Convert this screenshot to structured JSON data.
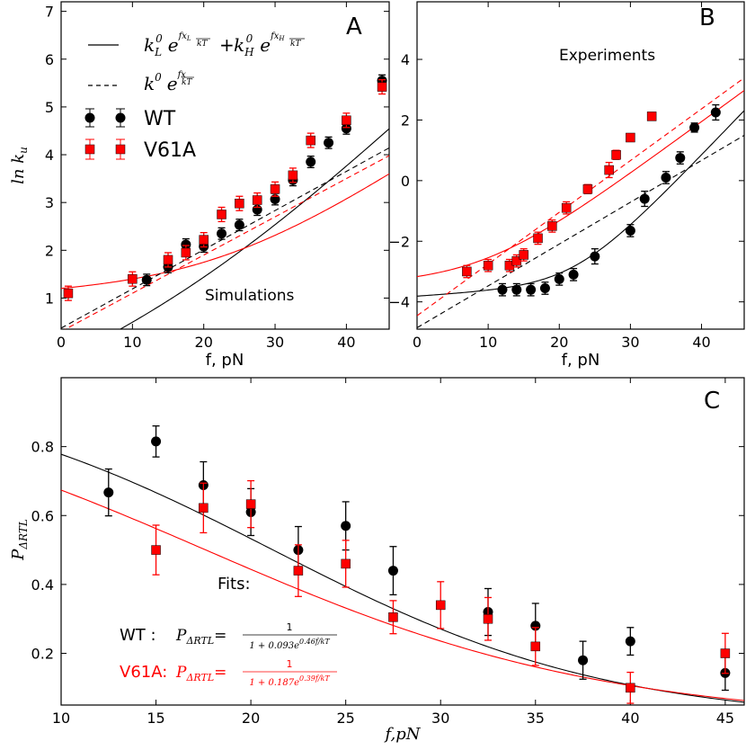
{
  "chart_data": [
    {
      "panel": "A",
      "type": "scatter",
      "panel_label": "A",
      "annotation": "Simulations",
      "xlabel": "f, pN",
      "ylabel": "ln k",
      "ylabel_sub": "u",
      "xlim": [
        0,
        46
      ],
      "ylim": [
        0.35,
        7.2
      ],
      "xticks": [
        "0",
        "10",
        "20",
        "30",
        "40"
      ],
      "yticks": [
        "1",
        "2",
        "3",
        "4",
        "5",
        "6",
        "7"
      ],
      "legend": {
        "solid_label": "k_L^0 e^{f x_L / kT} + k_H^0 e^{f x_H / kT}",
        "dashed_label": "k^0 e^{f x / kT}",
        "wt_label": "WT",
        "mut_label": "V61A"
      },
      "series": [
        {
          "name": "WT",
          "color": "#000000",
          "marker": "circle",
          "x": [
            12,
            15,
            17.5,
            20,
            22.5,
            25,
            27.5,
            30,
            32.5,
            35,
            37.5,
            40,
            45
          ],
          "y": [
            1.38,
            1.65,
            2.12,
            2.08,
            2.35,
            2.53,
            2.85,
            3.07,
            3.47,
            3.85,
            4.25,
            4.55,
            5.55
          ],
          "err": [
            0.12,
            0.12,
            0.12,
            0.12,
            0.12,
            0.12,
            0.12,
            0.12,
            0.12,
            0.12,
            0.12,
            0.12,
            0.12
          ]
        },
        {
          "name": "V61A",
          "color": "#ff0000",
          "marker": "square",
          "x": [
            1,
            10,
            15,
            17.5,
            20,
            22.5,
            25,
            27.5,
            30,
            32.5,
            35,
            40,
            45
          ],
          "y": [
            1.1,
            1.4,
            1.8,
            1.95,
            2.22,
            2.75,
            2.98,
            3.05,
            3.28,
            3.57,
            4.3,
            4.72,
            5.42
          ],
          "err": [
            0.15,
            0.15,
            0.15,
            0.15,
            0.15,
            0.15,
            0.15,
            0.15,
            0.15,
            0.15,
            0.15,
            0.15,
            0.15
          ]
        }
      ],
      "fits": [
        {
          "name": "WT two-exp",
          "color": "#000000",
          "style": "solid",
          "kL": 0.6,
          "xL": 0.06,
          "kH": 0.135,
          "xH": 0.14
        },
        {
          "name": "V61A two-exp",
          "color": "#ff0000",
          "style": "solid",
          "kL": 3.0,
          "xL": 0.005,
          "kH": 0.33,
          "xH": 0.1
        },
        {
          "name": "WT single",
          "color": "#000000",
          "style": "dashed",
          "k0": 1.45,
          "x": 0.082
        },
        {
          "name": "V61A single",
          "color": "#ff0000",
          "style": "dashed",
          "k0": 1.35,
          "x": 0.08
        }
      ]
    },
    {
      "panel": "B",
      "type": "scatter",
      "panel_label": "B",
      "annotation": "Experiments",
      "xlabel": "f, pN",
      "xlim": [
        0,
        46
      ],
      "ylim": [
        -4.9,
        5.9
      ],
      "xticks": [
        "0",
        "10",
        "20",
        "30",
        "40"
      ],
      "yticks": [
        "−4",
        "−2",
        "0",
        "2",
        "4"
      ],
      "series": [
        {
          "name": "WT",
          "color": "#000000",
          "marker": "circle",
          "x": [
            12,
            14,
            16,
            18,
            20,
            22,
            25,
            30,
            32,
            35,
            37,
            39,
            42
          ],
          "y": [
            -3.6,
            -3.6,
            -3.6,
            -3.55,
            -3.25,
            -3.1,
            -2.5,
            -1.65,
            -0.6,
            0.1,
            0.75,
            1.75,
            2.25
          ],
          "err": [
            0.2,
            0.2,
            0.2,
            0.2,
            0.2,
            0.2,
            0.25,
            0.2,
            0.25,
            0.2,
            0.2,
            0.15,
            0.25
          ]
        },
        {
          "name": "V61A",
          "color": "#ff0000",
          "marker": "square",
          "x": [
            7,
            10,
            13,
            14,
            15,
            17,
            19,
            21,
            24,
            27,
            28,
            30,
            33
          ],
          "y": [
            -3.0,
            -2.8,
            -2.8,
            -2.65,
            -2.45,
            -1.9,
            -1.5,
            -0.9,
            -0.28,
            0.35,
            0.85,
            1.42,
            2.12
          ],
          "err": [
            0.2,
            0.2,
            0.2,
            0.2,
            0.2,
            0.2,
            0.2,
            0.2,
            0.15,
            0.25,
            0.15,
            0.1,
            0.12
          ]
        }
      ],
      "fits": [
        {
          "name": "WT two-exp",
          "color": "#000000",
          "style": "solid",
          "kL": 0.022,
          "xL": 0.015,
          "kH": 0.000128,
          "xH": 0.245
        },
        {
          "name": "V61A two-exp",
          "color": "#ff0000",
          "style": "solid",
          "kL": 0.035,
          "xL": 0.01,
          "kH": 0.00715,
          "xH": 0.172
        },
        {
          "name": "WT single",
          "color": "#000000",
          "style": "dashed",
          "k0": 0.0078,
          "x": 0.138
        },
        {
          "name": "V61A single",
          "color": "#ff0000",
          "style": "dashed",
          "k0": 0.0116,
          "x": 0.1706
        }
      ]
    },
    {
      "panel": "C",
      "type": "scatter",
      "panel_label": "C",
      "xlabel": "f,pN",
      "ylabel": "P",
      "ylabel_sub": "ΔRTL",
      "xlim": [
        10,
        46
      ],
      "ylim": [
        0.05,
        1.0
      ],
      "xticks": [
        "10",
        "15",
        "20",
        "25",
        "30",
        "35",
        "40",
        "45"
      ],
      "yticks": [
        "0.2",
        "0.4",
        "0.6",
        "0.8"
      ],
      "fits_title": "Fits:",
      "fit_labels": [
        {
          "series": "WT",
          "prefix": "WT   :",
          "numerator": "1",
          "denominator": "1 + 0.093e^{0.46f/kT}",
          "color": "#000000",
          "a": 0.093,
          "b": 0.46
        },
        {
          "series": "V61A",
          "prefix": "V61A:",
          "numerator": "1",
          "denominator": "1 + 0.187e^{0.39f/kT}",
          "color": "#ff0000",
          "a": 0.187,
          "b": 0.39
        }
      ],
      "kT": 4.1,
      "series": [
        {
          "name": "WT",
          "color": "#000000",
          "marker": "circle",
          "x": [
            12.5,
            15,
            17.5,
            20,
            22.5,
            25,
            27.5,
            32.5,
            35,
            37.5,
            40,
            45
          ],
          "y": [
            0.667,
            0.815,
            0.688,
            0.61,
            0.5,
            0.57,
            0.44,
            0.32,
            0.28,
            0.18,
            0.235,
            0.143
          ],
          "err": [
            0.068,
            0.045,
            0.068,
            0.068,
            0.068,
            0.07,
            0.07,
            0.068,
            0.065,
            0.055,
            0.04,
            0.05
          ]
        },
        {
          "name": "V61A",
          "color": "#ff0000",
          "marker": "square",
          "x": [
            15,
            17.5,
            20,
            22.5,
            25,
            27.5,
            30,
            32.5,
            35,
            40,
            45
          ],
          "y": [
            0.5,
            0.622,
            0.633,
            0.44,
            0.46,
            0.305,
            0.34,
            0.3,
            0.22,
            0.1,
            0.2
          ],
          "err": [
            0.072,
            0.072,
            0.068,
            0.075,
            0.068,
            0.048,
            0.068,
            0.062,
            0.055,
            0.045,
            0.058
          ]
        }
      ]
    }
  ]
}
